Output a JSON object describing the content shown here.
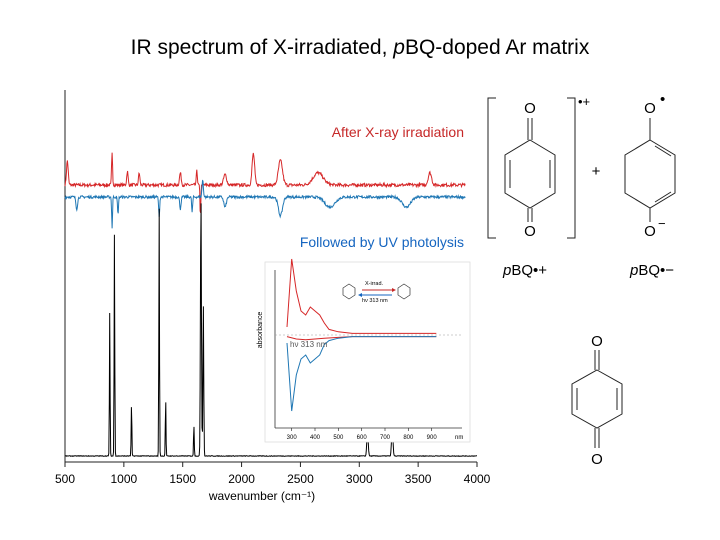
{
  "title": {
    "prefix": "IR spectrum of X-irradiated, ",
    "italic": "p",
    "suffix": "BQ-doped Ar matrix"
  },
  "chart_data": {
    "type": "line",
    "title": "IR spectrum of X-irradiated, pBQ-doped Ar matrix",
    "xlabel": "wavenumber (cm⁻¹)",
    "xlim": [
      500,
      4000
    ],
    "xticks": [
      500,
      1000,
      1500,
      2000,
      2500,
      3000,
      3500,
      4000
    ],
    "annotations": [
      "After X-ray irradiation",
      "Followed by UV photolysis"
    ],
    "colors": {
      "red": "#d62728",
      "blue": "#1f77b4",
      "black": "#000000"
    },
    "series": [
      {
        "color": "red",
        "peaks": [
          {
            "x": 520,
            "h": 0.7,
            "w": 10
          },
          {
            "x": 900,
            "h": 0.9,
            "w": 6
          },
          {
            "x": 1030,
            "h": 0.4,
            "w": 8
          },
          {
            "x": 1130,
            "h": 0.35,
            "w": 8
          },
          {
            "x": 1480,
            "h": 0.35,
            "w": 10
          },
          {
            "x": 1620,
            "h": 0.45,
            "w": 6
          },
          {
            "x": 1650,
            "h": -0.9,
            "w": 5
          },
          {
            "x": 1860,
            "h": 0.3,
            "w": 18
          },
          {
            "x": 2100,
            "h": 0.9,
            "w": 15
          },
          {
            "x": 2330,
            "h": 0.7,
            "w": 25
          },
          {
            "x": 2650,
            "h": 0.35,
            "w": 60
          },
          {
            "x": 3600,
            "h": 0.35,
            "w": 20
          }
        ]
      },
      {
        "color": "blue",
        "peaks": [
          {
            "x": 600,
            "h": -0.35,
            "w": 10
          },
          {
            "x": 900,
            "h": -0.9,
            "w": 5
          },
          {
            "x": 950,
            "h": -0.5,
            "w": 6
          },
          {
            "x": 1300,
            "h": -0.6,
            "w": 6
          },
          {
            "x": 1480,
            "h": -0.35,
            "w": 8
          },
          {
            "x": 1580,
            "h": -0.45,
            "w": 6
          },
          {
            "x": 1670,
            "h": 0.5,
            "w": 8
          },
          {
            "x": 1860,
            "h": -0.3,
            "w": 15
          },
          {
            "x": 2330,
            "h": -0.55,
            "w": 25
          },
          {
            "x": 2750,
            "h": -0.3,
            "w": 60
          },
          {
            "x": 3400,
            "h": -0.3,
            "w": 50
          }
        ]
      },
      {
        "color": "black",
        "peaks": [
          {
            "x": 880,
            "h": 0.55,
            "w": 4
          },
          {
            "x": 920,
            "h": 0.85,
            "w": 4
          },
          {
            "x": 1065,
            "h": 0.2,
            "w": 4
          },
          {
            "x": 1300,
            "h": 0.95,
            "w": 4
          },
          {
            "x": 1355,
            "h": 0.22,
            "w": 4
          },
          {
            "x": 1595,
            "h": 0.12,
            "w": 4
          },
          {
            "x": 1655,
            "h": 1.0,
            "w": 6
          },
          {
            "x": 1675,
            "h": 0.6,
            "w": 5
          },
          {
            "x": 3070,
            "h": 0.1,
            "w": 8
          },
          {
            "x": 3280,
            "h": 0.12,
            "w": 8
          }
        ]
      }
    ],
    "inset": {
      "type": "line",
      "xlim": [
        250,
        1000
      ],
      "xticks": [
        300,
        400,
        500,
        600,
        700,
        800,
        900
      ],
      "xunit": "nm",
      "ylabel": "absorbance",
      "arrow_forward": "X-irrad.",
      "arrow_back": "hν 313 nm",
      "label": "hν 313 nm",
      "series": [
        {
          "color": "red",
          "x": [
            280,
            300,
            320,
            340,
            360,
            380,
            400,
            420,
            440,
            460,
            500,
            560,
            640,
            720,
            800,
            880,
            920
          ],
          "y": [
            0.1,
            0.95,
            0.55,
            0.3,
            0.25,
            0.35,
            0.3,
            0.25,
            0.15,
            0.07,
            0.04,
            0.02,
            0.02,
            0.02,
            0.02,
            0.02,
            0.02
          ]
        },
        {
          "color": "red",
          "x": [
            280,
            320,
            360,
            400,
            440,
            500,
            560,
            640,
            720,
            800,
            880,
            920
          ],
          "y": [
            -0.02,
            -0.05,
            -0.06,
            -0.05,
            -0.04,
            -0.03,
            -0.02,
            -0.02,
            -0.02,
            -0.02,
            -0.02,
            -0.02
          ]
        },
        {
          "color": "blue",
          "x": [
            280,
            300,
            320,
            340,
            360,
            380,
            400,
            420,
            440,
            460,
            500,
            560,
            640,
            720,
            800,
            880,
            920
          ],
          "y": [
            -0.1,
            -0.95,
            -0.5,
            -0.3,
            -0.25,
            -0.35,
            -0.3,
            -0.25,
            -0.12,
            -0.07,
            -0.04,
            -0.02,
            -0.02,
            -0.02,
            -0.02,
            -0.02,
            -0.02
          ]
        }
      ]
    }
  },
  "structures": {
    "cation_O_top": "O",
    "cation_O_bottom": "O",
    "cation_charge": "•+",
    "plus": "+",
    "anion_O_top": "O",
    "anion_radical": "•",
    "anion_O_bottom": "O",
    "anion_minus": "−",
    "cation_label_italic": "p",
    "cation_label_text": "BQ•+",
    "anion_label_italic": "p",
    "anion_label_text": "BQ•−",
    "neutral_O_top": "O",
    "neutral_O_bottom": "O"
  }
}
